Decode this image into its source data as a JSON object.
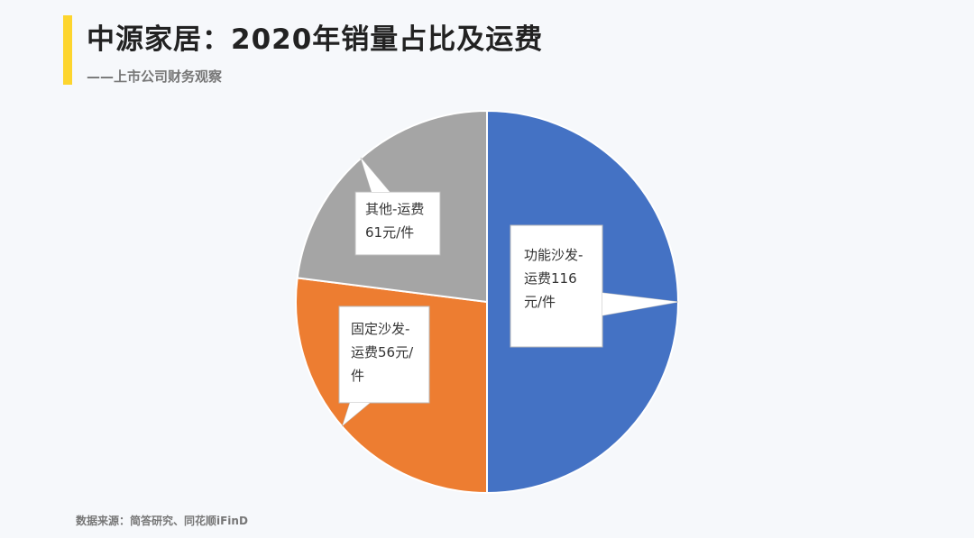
{
  "chart_data": {
    "type": "pie",
    "title": "中源家居：2020年销量占比及运费",
    "subtitle": "——上市公司财务观察",
    "source": "数据来源：简答研究、同花顺iFinD",
    "categories": [
      "功能沙发-运费116元/件",
      "固定沙发-运费56元/件",
      "其他-运费61元/件"
    ],
    "values": [
      50,
      27,
      23
    ],
    "colors": [
      "#4472c4",
      "#ed7d31",
      "#a5a5a5"
    ]
  }
}
